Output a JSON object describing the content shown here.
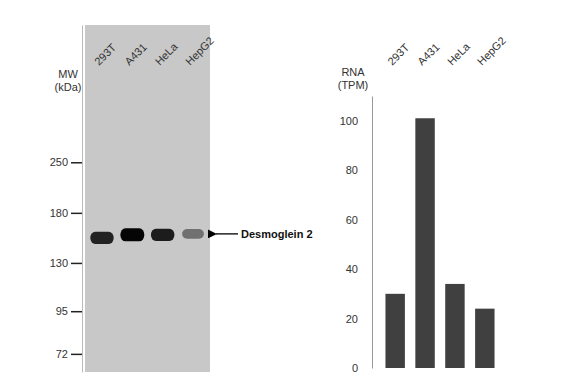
{
  "chart_data": [
    {
      "type": "western_blot",
      "categories": [
        "293T",
        "A431",
        "HeLa",
        "HepG2"
      ],
      "ylabel": "MW (kDa)",
      "log": "y",
      "ylim": [
        64,
        610
      ],
      "yticks": [
        72,
        95,
        130,
        180,
        250
      ],
      "values": [
        153,
        156,
        156,
        157
      ],
      "intensity": [
        0.85,
        1,
        0.88,
        0.45
      ],
      "annotation": "Desmoglein 2",
      "color": "#c8c8c8"
    },
    {
      "type": "bar",
      "categories": [
        "293T",
        "A431",
        "HeLa",
        "HepG2"
      ],
      "ylabel": "RNA (TPM)",
      "values": [
        30,
        101,
        34,
        24
      ],
      "color": "#404040",
      "ylim": [
        0,
        110
      ],
      "yticks": [
        0,
        20,
        40,
        60,
        80,
        100
      ],
      "grid": false
    }
  ]
}
